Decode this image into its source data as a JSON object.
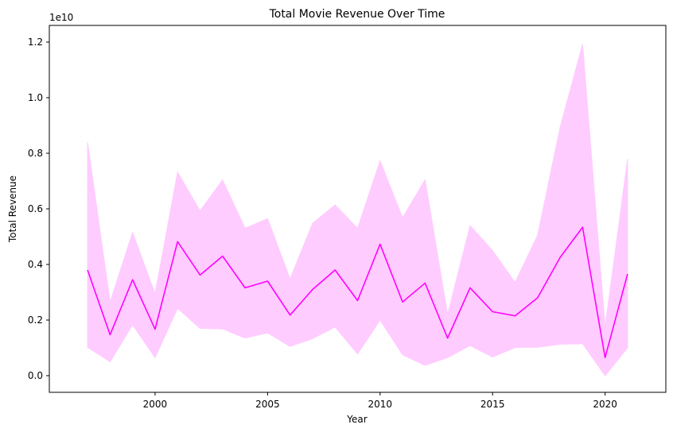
{
  "chart_data": {
    "type": "line",
    "title": "Total Movie Revenue Over Time",
    "xlabel": "Year",
    "ylabel": "Total Revenue",
    "y_offset_label": "1e10",
    "y_scale_factor": 10000000000,
    "xlim": [
      1995.3,
      2022.7
    ],
    "ylim": [
      -0.06,
      1.26
    ],
    "x_ticks": [
      2000,
      2005,
      2010,
      2015,
      2020
    ],
    "y_ticks": [
      0.0,
      0.2,
      0.4,
      0.6,
      0.8,
      1.0,
      1.2
    ],
    "y_tick_labels": [
      "0.0",
      "0.2",
      "0.4",
      "0.6",
      "0.8",
      "1.0",
      "1.2"
    ],
    "grid": false,
    "line_color": "#ff00ff",
    "band_color": "#ffccff",
    "series": [
      {
        "name": "Total Revenue",
        "x": [
          1997,
          1998,
          1999,
          2000,
          2001,
          2002,
          2003,
          2004,
          2005,
          2006,
          2007,
          2008,
          2009,
          2010,
          2011,
          2012,
          2013,
          2014,
          2015,
          2016,
          2017,
          2018,
          2019,
          2020,
          2021
        ],
        "y": [
          0.38,
          0.147,
          0.345,
          0.167,
          0.482,
          0.362,
          0.43,
          0.316,
          0.34,
          0.218,
          0.31,
          0.38,
          0.27,
          0.473,
          0.265,
          0.333,
          0.135,
          0.316,
          0.23,
          0.215,
          0.28,
          0.425,
          0.534,
          0.065,
          0.366
        ],
        "ci_lower": [
          0.102,
          0.05,
          0.183,
          0.065,
          0.242,
          0.17,
          0.168,
          0.135,
          0.154,
          0.105,
          0.133,
          0.175,
          0.078,
          0.2,
          0.075,
          0.037,
          0.065,
          0.108,
          0.067,
          0.101,
          0.102,
          0.113,
          0.115,
          0.0,
          0.1
        ],
        "ci_upper": [
          0.84,
          0.265,
          0.515,
          0.295,
          0.732,
          0.593,
          0.704,
          0.53,
          0.565,
          0.348,
          0.548,
          0.614,
          0.53,
          0.773,
          0.568,
          0.705,
          0.22,
          0.54,
          0.45,
          0.335,
          0.505,
          0.893,
          1.193,
          0.175,
          0.78
        ]
      }
    ]
  }
}
